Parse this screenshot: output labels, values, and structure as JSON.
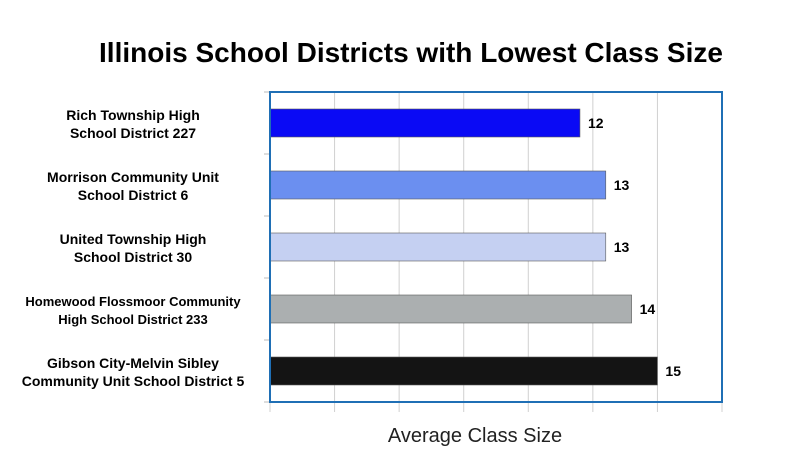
{
  "chart_data": {
    "type": "bar",
    "orientation": "horizontal",
    "title": "Illinois School Districts with Lowest Class Size",
    "xlabel": "Average Class Size",
    "ylabel": "",
    "categories": [
      [
        "Rich Township High",
        "School District 227"
      ],
      [
        "Morrison Community Unit",
        "School District 6"
      ],
      [
        "United Township High",
        "School District 30"
      ],
      [
        "Homewood Flossmoor Community",
        "High School District 233"
      ],
      [
        "Gibson City-Melvin Sibley",
        "Community Unit School District 5"
      ]
    ],
    "values": [
      12,
      13,
      13,
      14,
      15
    ],
    "value_labels": [
      "12",
      "13",
      "13",
      "14",
      "15"
    ],
    "bar_colors": [
      "#0a0af5",
      "#6b8ff0",
      "#c5d0f2",
      "#abafb0",
      "#141414"
    ],
    "xlim": [
      0,
      17.5
    ],
    "x_ticks": [
      0,
      2.5,
      5,
      7.5,
      10,
      12.5,
      15,
      17.5
    ],
    "grid": true,
    "legend": "none",
    "frame_color": "#1f6fb5",
    "grid_color": "#d0d0d0"
  }
}
